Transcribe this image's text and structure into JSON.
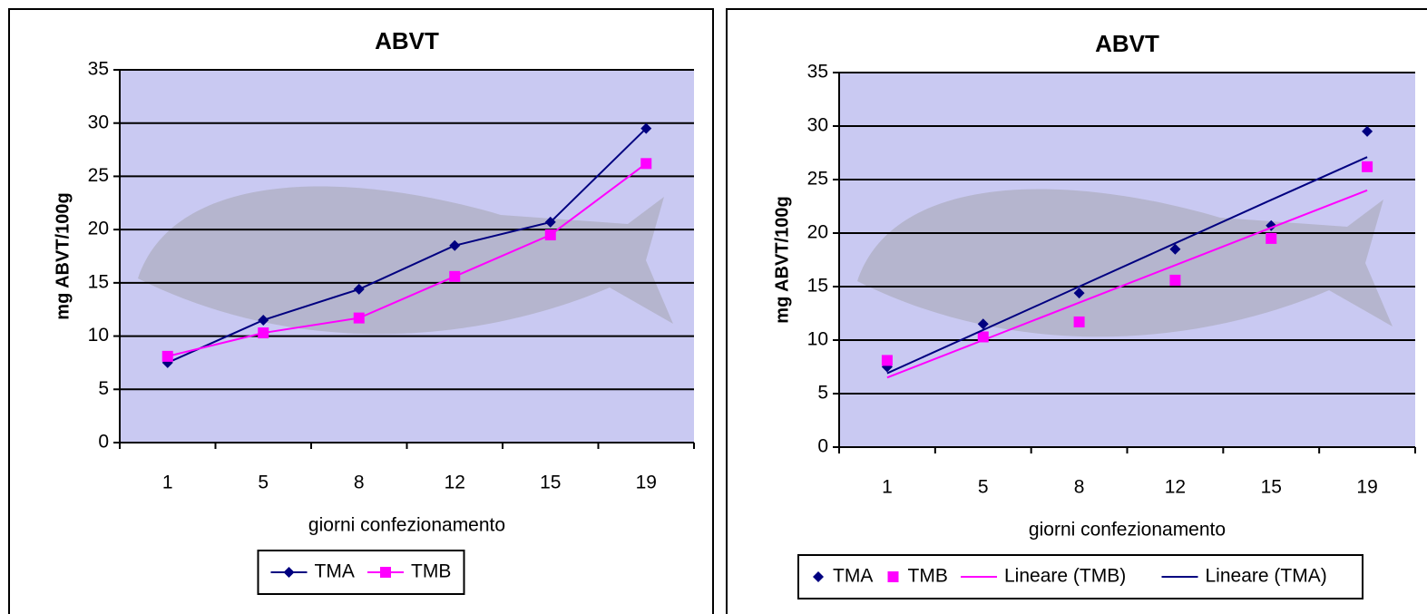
{
  "chart_data": [
    {
      "type": "line",
      "title": "ABVT",
      "y_label": "mg ABVT/100g",
      "x_label": "giorni confezionamento",
      "categories": [
        "1",
        "5",
        "8",
        "12",
        "15",
        "19"
      ],
      "series": [
        {
          "name": "TMA",
          "color": "#000080",
          "marker": "diamond",
          "line": true,
          "values": [
            7.5,
            11.5,
            14.4,
            18.5,
            20.7,
            29.5
          ]
        },
        {
          "name": "TMB",
          "color": "#ff00ff",
          "marker": "square",
          "line": true,
          "values": [
            8.1,
            10.3,
            11.7,
            15.6,
            19.5,
            26.2
          ]
        }
      ],
      "ylim": [
        0,
        35
      ],
      "yticks": [
        0,
        5,
        10,
        15,
        20,
        25,
        30,
        35
      ],
      "grid": true,
      "legend": "bottom"
    },
    {
      "type": "line",
      "title": "ABVT",
      "y_label": "mg ABVT/100g",
      "x_label": "giorni confezionamento",
      "categories": [
        "1",
        "5",
        "8",
        "12",
        "15",
        "19"
      ],
      "series": [
        {
          "name": "TMA",
          "color": "#000080",
          "marker": "diamond",
          "line": false,
          "values": [
            7.5,
            11.5,
            14.4,
            18.5,
            20.7,
            29.5
          ]
        },
        {
          "name": "TMB",
          "color": "#ff00ff",
          "marker": "square",
          "line": false,
          "values": [
            8.1,
            10.3,
            11.7,
            15.6,
            19.5,
            26.2
          ]
        },
        {
          "name": "Lineare (TMB)",
          "color": "#ff00ff",
          "marker": null,
          "line": true,
          "values": [
            6.5,
            10.0,
            13.5,
            17.0,
            20.5,
            24.0
          ]
        },
        {
          "name": "Lineare (TMA)",
          "color": "#000080",
          "marker": null,
          "line": true,
          "values": [
            6.9,
            10.95,
            15.0,
            19.05,
            23.1,
            27.1
          ]
        }
      ],
      "ylim": [
        0,
        35
      ],
      "yticks": [
        0,
        5,
        10,
        15,
        20,
        25,
        30,
        35
      ],
      "grid": true,
      "legend": "bottom"
    }
  ]
}
